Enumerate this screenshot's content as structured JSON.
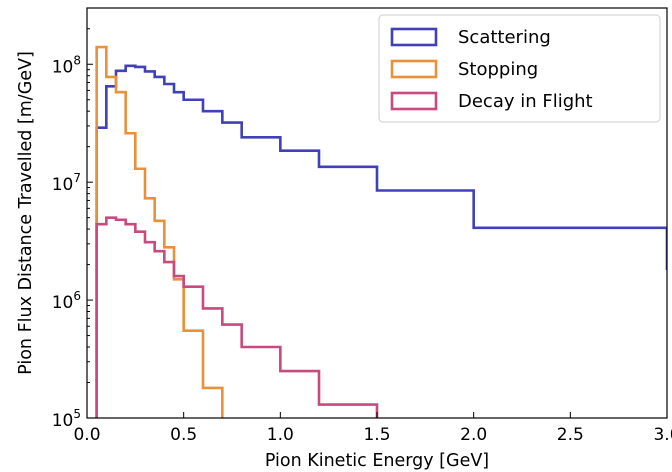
{
  "chart_data": {
    "type": "step-histogram",
    "title": "",
    "xlabel": "Pion Kinetic Energy [GeV]",
    "ylabel": "Pion Flux Distance Travelled [m/GeV]",
    "xlim": [
      0,
      3
    ],
    "ylim": [
      100000,
      300000000
    ],
    "yscale": "log",
    "grid": false,
    "legend_position": "top-right",
    "x_ticks": [
      "0.0",
      "0.5",
      "1.0",
      "1.5",
      "2.0",
      "2.5",
      "3.0"
    ],
    "y_ticks": [
      {
        "base": "10",
        "exp": "5",
        "value": 100000
      },
      {
        "base": "10",
        "exp": "6",
        "value": 1000000
      },
      {
        "base": "10",
        "exp": "7",
        "value": 10000000
      },
      {
        "base": "10",
        "exp": "8",
        "value": 100000000
      }
    ],
    "series": [
      {
        "name": "Scattering",
        "color": "#4040b8",
        "edges": [
          0.05,
          0.1,
          0.15,
          0.2,
          0.25,
          0.3,
          0.35,
          0.4,
          0.45,
          0.5,
          0.6,
          0.7,
          0.8,
          1.0,
          1.2,
          1.5,
          2.0,
          3.0
        ],
        "values": [
          29000000,
          65000000,
          88000000,
          97000000,
          95000000,
          87000000,
          78000000,
          68000000,
          58000000,
          50000000,
          40000000,
          32000000,
          24000000,
          18500000,
          13500000,
          8500000,
          4100000
        ],
        "end_value": 1800000
      },
      {
        "name": "Stopping",
        "color": "#e8913a",
        "edges": [
          0.05,
          0.1,
          0.15,
          0.2,
          0.25,
          0.3,
          0.35,
          0.4,
          0.45,
          0.5,
          0.6,
          0.7
        ],
        "values": [
          140000000,
          78000000,
          58000000,
          26000000,
          13000000,
          7300000,
          4700000,
          2800000,
          1500000,
          550000,
          180000
        ],
        "end_value": 100000
      },
      {
        "name": "Decay in Flight",
        "color": "#c84a80",
        "edges": [
          0.05,
          0.1,
          0.15,
          0.2,
          0.25,
          0.3,
          0.35,
          0.4,
          0.45,
          0.5,
          0.6,
          0.7,
          0.8,
          1.0,
          1.2,
          1.5
        ],
        "values": [
          4400000,
          5000000,
          4800000,
          4400000,
          3800000,
          3100000,
          2600000,
          2100000,
          1600000,
          1300000,
          850000,
          620000,
          400000,
          250000,
          130000
        ],
        "end_value": 100000
      }
    ]
  }
}
